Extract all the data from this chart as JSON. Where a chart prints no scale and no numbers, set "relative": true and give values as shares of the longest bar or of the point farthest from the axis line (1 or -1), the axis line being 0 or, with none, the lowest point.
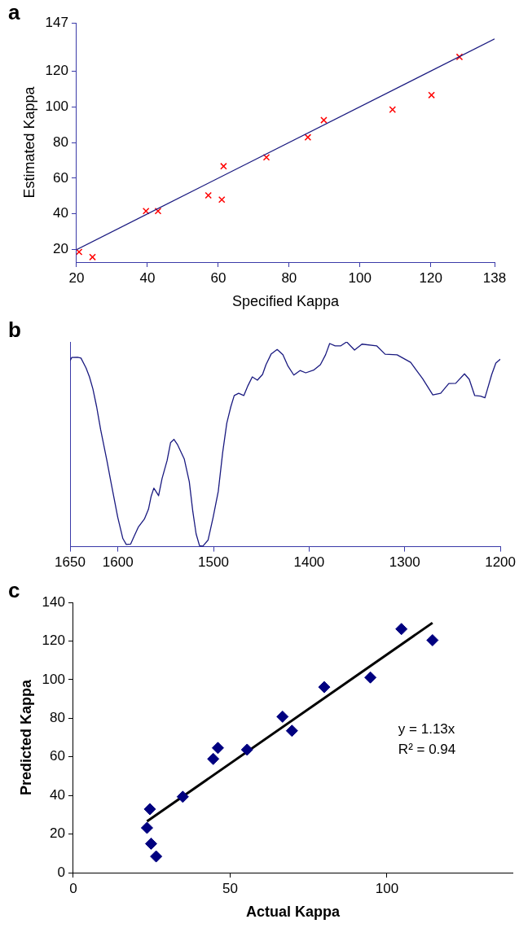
{
  "chart_data": [
    {
      "type": "scatter",
      "title": "a",
      "xlabel": "Specified Kappa",
      "ylabel": "Estimated Kappa",
      "xlim": [
        20,
        138
      ],
      "xticks": [
        20,
        40,
        60,
        80,
        100,
        120,
        138
      ],
      "ylim": [
        13,
        147
      ],
      "yticks": [
        20,
        40,
        60,
        80,
        100,
        120,
        147
      ],
      "grid": false,
      "legend": false,
      "series": [
        {
          "type": "line",
          "marker": "none",
          "color": "#1a1a80",
          "x": [
            20,
            138
          ],
          "values": [
            20,
            138
          ]
        },
        {
          "type": "scatter",
          "marker": "cross",
          "color": "#ff0000",
          "x": [
            20.7,
            24.5,
            39.6,
            43,
            57.2,
            61,
            61.5,
            73.6,
            85.3,
            89.8,
            109.2,
            120.2,
            128.1
          ],
          "values": [
            18.7,
            15.8,
            41.6,
            41.6,
            50.4,
            48,
            66.7,
            71.7,
            82.9,
            92.5,
            98.4,
            106.5,
            127.9
          ]
        }
      ]
    },
    {
      "type": "line",
      "title": "b",
      "relative": true,
      "xlim": [
        1650,
        1200
      ],
      "xticks": [
        1650,
        1600,
        1500,
        1400,
        1300,
        1200
      ],
      "tick_labels": "x",
      "grid": false,
      "legend": false,
      "marker": "none",
      "series": [
        {
          "color": "#1a1a80",
          "x": [
            1650,
            1648.2,
            1642.2,
            1638.6,
            1633.3,
            1629.7,
            1626.1,
            1622.2,
            1618,
            1611.5,
            1607.3,
            1600.1,
            1594.8,
            1591.2,
            1586.6,
            1583,
            1578.7,
            1572.3,
            1568,
            1565.2,
            1562.4,
            1560.2,
            1557.4,
            1553.8,
            1548.5,
            1544.9,
            1541.3,
            1537.8,
            1530.6,
            1525.3,
            1521.7,
            1518.2,
            1514.6,
            1511.1,
            1505.7,
            1500.4,
            1495,
            1490.4,
            1486.1,
            1481.9,
            1478.3,
            1473.7,
            1468.3,
            1464,
            1459.4,
            1454.1,
            1448.7,
            1445.1,
            1439.8,
            1433.4,
            1427.4,
            1422,
            1416,
            1409.5,
            1403.5,
            1395.3,
            1388.2,
            1382.8,
            1378.5,
            1372.8,
            1366.8,
            1360.7,
            1352.5,
            1344.7,
            1329.4,
            1320.5,
            1308,
            1293.8,
            1288.4,
            1281.3,
            1270.6,
            1262.4,
            1253.9,
            1246.7,
            1237.5,
            1232.5,
            1226.8,
            1220.7,
            1216.1,
            1209,
            1204.7,
            1200
          ],
          "values": [
            0.908,
            0.924,
            0.925,
            0.921,
            0.873,
            0.829,
            0.77,
            0.683,
            0.571,
            0.421,
            0.317,
            0.143,
            0.04,
            0.011,
            0.013,
            0.051,
            0.095,
            0.135,
            0.183,
            0.246,
            0.286,
            0.27,
            0.249,
            0.333,
            0.421,
            0.508,
            0.524,
            0.5,
            0.429,
            0.317,
            0.175,
            0.063,
            0.005,
            0.003,
            0.032,
            0.143,
            0.27,
            0.46,
            0.603,
            0.683,
            0.738,
            0.749,
            0.738,
            0.786,
            0.829,
            0.813,
            0.841,
            0.889,
            0.94,
            0.963,
            0.937,
            0.881,
            0.838,
            0.86,
            0.849,
            0.862,
            0.889,
            0.937,
            0.992,
            0.981,
            0.981,
            1,
            0.96,
            0.989,
            0.981,
            0.94,
            0.937,
            0.9,
            0.865,
            0.821,
            0.741,
            0.749,
            0.797,
            0.798,
            0.844,
            0.817,
            0.738,
            0.735,
            0.727,
            0.841,
            0.897,
            0.916
          ]
        }
      ]
    },
    {
      "type": "scatter",
      "title": "c",
      "xlabel": "Actual Kappa",
      "ylabel": "Predicted Kappa",
      "xlim": [
        0,
        140
      ],
      "xticks": [
        0,
        50,
        100
      ],
      "ylim": [
        0,
        140
      ],
      "yticks": [
        0,
        20,
        40,
        60,
        80,
        100,
        120,
        140
      ],
      "grid": false,
      "legend": false,
      "annotations": [
        "y = 1.13x",
        "R² = 0.94"
      ],
      "series": [
        {
          "type": "scatter",
          "marker": "diamond",
          "color": "#000080",
          "x": [
            23.5,
            24.4,
            24.8,
            26.4,
            34.9,
            44.6,
            46.1,
            55.4,
            66.7,
            69.7,
            80,
            94.7,
            104.6,
            114.5
          ],
          "values": [
            23.2,
            32.9,
            15,
            8.4,
            39.3,
            58.9,
            64.6,
            63.7,
            80.8,
            73.5,
            96.1,
            101.1,
            126.2,
            120.4
          ]
        },
        {
          "type": "line",
          "marker": "none",
          "color": "#000000",
          "x": [
            23.5,
            114.5
          ],
          "values": [
            26.6,
            129.4
          ]
        }
      ]
    }
  ]
}
